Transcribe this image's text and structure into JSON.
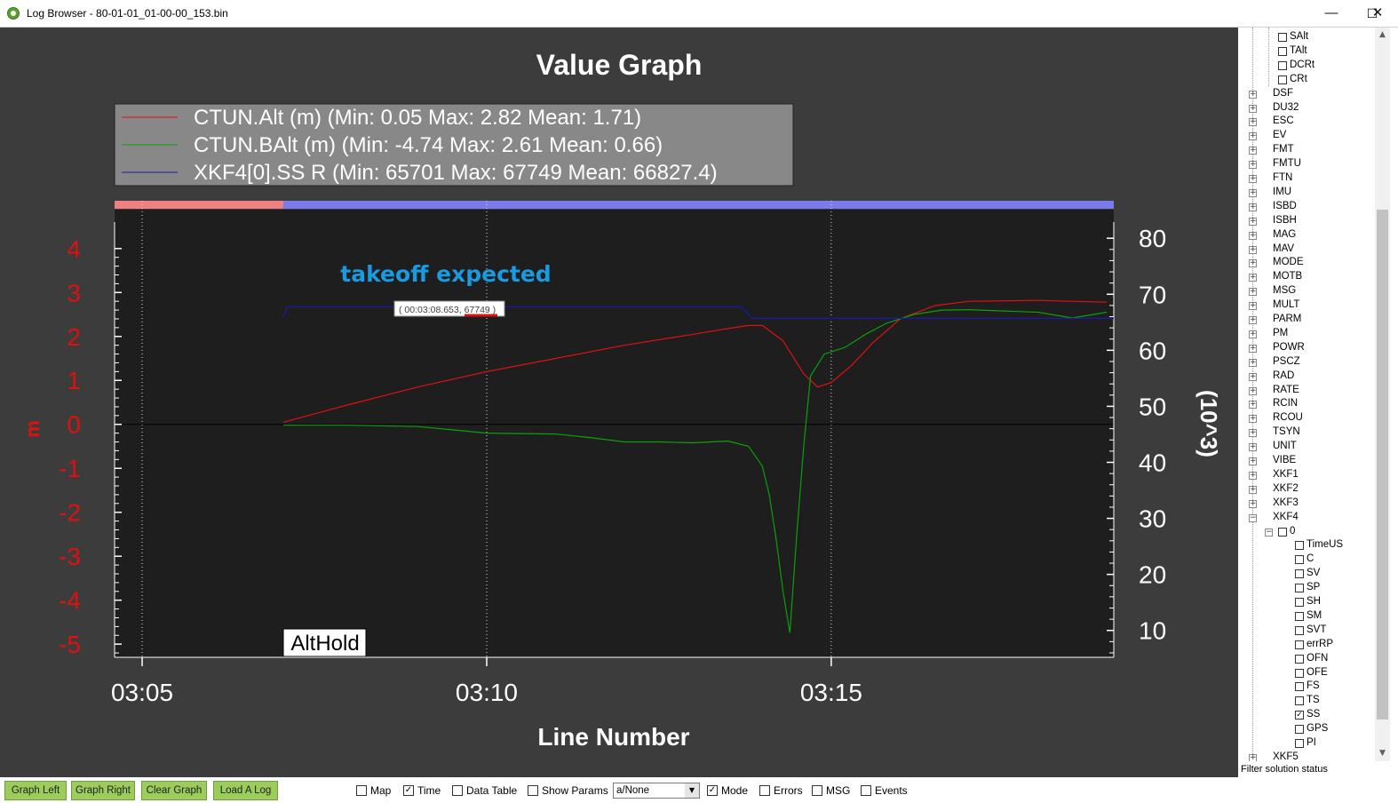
{
  "window": {
    "title": "Log Browser - 80-01-01_01-00-00_153.bin",
    "minimize": "—",
    "maximize": "☐",
    "close": "✕"
  },
  "graph": {
    "title": "Value Graph",
    "xlabel": "Line Number",
    "ylabel_left": "m",
    "ylabel_right": "(10^3)",
    "mode_label": "AltHold",
    "annotation": "takeoff expected",
    "tooltip": {
      "prefix": "( 00:03:08.653, ",
      "value": "67749",
      "suffix": " )"
    },
    "legend": [
      {
        "text": "CTUN.Alt (m) (Min: 0.05 Max: 2.82 Mean: 1.71)",
        "color": "#e01010"
      },
      {
        "text": "CTUN.BAlt (m) (Min: -4.74 Max: 2.61 Mean: 0.66)",
        "color": "#0aa00a"
      },
      {
        "text": "XKF4[0].SS R (Min: 65701 Max: 67749 Mean: 66827.4)",
        "color": "#1a1ab0"
      }
    ],
    "colors": {
      "background": "#3c3c3c",
      "plot": "#1e1e1e",
      "left_axis": "#e01010",
      "right_axis": "#ffffff",
      "annotation": "#1a9ae0",
      "mode_pink": "#f08080",
      "mode_blue": "#7b7bf0"
    }
  },
  "chart_data": {
    "type": "line",
    "title": "Value Graph",
    "xlabel": "Line Number",
    "ylabel": "m",
    "y2label": "(10^3)",
    "x_ticks": [
      "03:05",
      "03:10",
      "03:15"
    ],
    "x_tick_minutes": [
      185,
      190,
      195
    ],
    "xlim_minutes": [
      184.6,
      199.1
    ],
    "ylim": [
      -5.3,
      4.4
    ],
    "y_ticks": [
      4,
      3,
      2,
      1,
      0,
      -1,
      -2,
      -3,
      -4,
      -5
    ],
    "y2lim": [
      5.2,
      81.3
    ],
    "y2_ticks": [
      80,
      70,
      60,
      50,
      40,
      30,
      20,
      10
    ],
    "grid": "vertical dotted at x ticks",
    "series": [
      {
        "name": "CTUN.Alt (m)",
        "axis": "left",
        "color": "#e01010",
        "points": [
          [
            187.05,
            0.05
          ],
          [
            188,
            0.45
          ],
          [
            189,
            0.85
          ],
          [
            190,
            1.2
          ],
          [
            191,
            1.5
          ],
          [
            192,
            1.8
          ],
          [
            193,
            2.05
          ],
          [
            193.5,
            2.18
          ],
          [
            193.8,
            2.25
          ],
          [
            194.0,
            2.25
          ],
          [
            194.3,
            1.9
          ],
          [
            194.6,
            1.15
          ],
          [
            194.8,
            0.85
          ],
          [
            195.0,
            0.95
          ],
          [
            195.3,
            1.35
          ],
          [
            195.6,
            1.85
          ],
          [
            196,
            2.4
          ],
          [
            196.5,
            2.7
          ],
          [
            197,
            2.8
          ],
          [
            198,
            2.82
          ],
          [
            199,
            2.78
          ]
        ]
      },
      {
        "name": "CTUN.BAlt (m)",
        "axis": "left",
        "color": "#0aa00a",
        "points": [
          [
            187.05,
            -0.02
          ],
          [
            188,
            -0.02
          ],
          [
            189,
            -0.05
          ],
          [
            190,
            -0.2
          ],
          [
            191,
            -0.22
          ],
          [
            191.5,
            -0.3
          ],
          [
            192,
            -0.4
          ],
          [
            192.5,
            -0.4
          ],
          [
            193,
            -0.42
          ],
          [
            193.5,
            -0.38
          ],
          [
            193.8,
            -0.5
          ],
          [
            194.0,
            -0.95
          ],
          [
            194.1,
            -1.6
          ],
          [
            194.2,
            -2.6
          ],
          [
            194.3,
            -3.8
          ],
          [
            194.4,
            -4.74
          ],
          [
            194.5,
            -2.5
          ],
          [
            194.6,
            -0.5
          ],
          [
            194.7,
            1.1
          ],
          [
            194.9,
            1.6
          ],
          [
            195.2,
            1.75
          ],
          [
            195.5,
            2.05
          ],
          [
            195.8,
            2.3
          ],
          [
            196.2,
            2.5
          ],
          [
            196.6,
            2.6
          ],
          [
            197,
            2.61
          ],
          [
            197.5,
            2.58
          ],
          [
            198,
            2.55
          ],
          [
            198.5,
            2.42
          ],
          [
            199,
            2.55
          ]
        ]
      },
      {
        "name": "XKF4[0].SS R",
        "axis": "right",
        "color": "#1a1ab0",
        "points": [
          [
            187.05,
            66.0
          ],
          [
            187.1,
            67.749
          ],
          [
            193.7,
            67.749
          ],
          [
            193.85,
            65.701
          ],
          [
            199.1,
            65.701
          ]
        ]
      }
    ],
    "mode_bar": [
      {
        "mode": "pink",
        "from": 184.6,
        "to": 187.05
      },
      {
        "mode": "blue",
        "from": 187.05,
        "to": 199.1
      }
    ]
  },
  "tree": {
    "items": [
      {
        "label": "SAlt",
        "level": "leaf",
        "checked": false
      },
      {
        "label": "TAlt",
        "level": "leaf",
        "checked": false
      },
      {
        "label": "DCRt",
        "level": "leaf",
        "checked": false
      },
      {
        "label": "CRt",
        "level": "leaf",
        "checked": false
      },
      {
        "label": "DSF",
        "level": "root",
        "exp": "+"
      },
      {
        "label": "DU32",
        "level": "root",
        "exp": "+"
      },
      {
        "label": "ESC",
        "level": "root",
        "exp": "+"
      },
      {
        "label": "EV",
        "level": "root",
        "exp": "+"
      },
      {
        "label": "FMT",
        "level": "root",
        "exp": "+"
      },
      {
        "label": "FMTU",
        "level": "root",
        "exp": "+"
      },
      {
        "label": "FTN",
        "level": "root",
        "exp": "+"
      },
      {
        "label": "IMU",
        "level": "root",
        "exp": "+"
      },
      {
        "label": "ISBD",
        "level": "root",
        "exp": "+"
      },
      {
        "label": "ISBH",
        "level": "root",
        "exp": "+"
      },
      {
        "label": "MAG",
        "level": "root",
        "exp": "+"
      },
      {
        "label": "MAV",
        "level": "root",
        "exp": "+"
      },
      {
        "label": "MODE",
        "level": "root",
        "exp": "+"
      },
      {
        "label": "MOTB",
        "level": "root",
        "exp": "+"
      },
      {
        "label": "MSG",
        "level": "root",
        "exp": "+"
      },
      {
        "label": "MULT",
        "level": "root",
        "exp": "+"
      },
      {
        "label": "PARM",
        "level": "root",
        "exp": "+"
      },
      {
        "label": "PM",
        "level": "root",
        "exp": "+"
      },
      {
        "label": "POWR",
        "level": "root",
        "exp": "+"
      },
      {
        "label": "PSCZ",
        "level": "root",
        "exp": "+"
      },
      {
        "label": "RAD",
        "level": "root",
        "exp": "+"
      },
      {
        "label": "RATE",
        "level": "root",
        "exp": "+"
      },
      {
        "label": "RCIN",
        "level": "root",
        "exp": "+"
      },
      {
        "label": "RCOU",
        "level": "root",
        "exp": "+"
      },
      {
        "label": "TSYN",
        "level": "root",
        "exp": "+"
      },
      {
        "label": "UNIT",
        "level": "root",
        "exp": "+"
      },
      {
        "label": "VIBE",
        "level": "root",
        "exp": "+"
      },
      {
        "label": "XKF1",
        "level": "root",
        "exp": "+"
      },
      {
        "label": "XKF2",
        "level": "root",
        "exp": "+"
      },
      {
        "label": "XKF3",
        "level": "root",
        "exp": "+"
      },
      {
        "label": "XKF4",
        "level": "root",
        "exp": "-"
      },
      {
        "label": "0",
        "level": "mid",
        "exp": "-",
        "checked": false
      },
      {
        "label": "TimeUS",
        "level": "leaf2",
        "checked": false
      },
      {
        "label": "C",
        "level": "leaf2",
        "checked": false
      },
      {
        "label": "SV",
        "level": "leaf2",
        "checked": false
      },
      {
        "label": "SP",
        "level": "leaf2",
        "checked": false
      },
      {
        "label": "SH",
        "level": "leaf2",
        "checked": false
      },
      {
        "label": "SM",
        "level": "leaf2",
        "checked": false
      },
      {
        "label": "SVT",
        "level": "leaf2",
        "checked": false
      },
      {
        "label": "errRP",
        "level": "leaf2",
        "checked": false
      },
      {
        "label": "OFN",
        "level": "leaf2",
        "checked": false
      },
      {
        "label": "OFE",
        "level": "leaf2",
        "checked": false
      },
      {
        "label": "FS",
        "level": "leaf2",
        "checked": false
      },
      {
        "label": "TS",
        "level": "leaf2",
        "checked": false
      },
      {
        "label": "SS",
        "level": "leaf2",
        "checked": true
      },
      {
        "label": "GPS",
        "level": "leaf2",
        "checked": false
      },
      {
        "label": "PI",
        "level": "leaf2",
        "checked": false
      },
      {
        "label": "XKF5",
        "level": "root",
        "exp": "+"
      }
    ],
    "status": "Filter solution status"
  },
  "toolbar": {
    "buttons": [
      "Graph Left",
      "Graph Right",
      "Clear Graph",
      "Load A Log"
    ],
    "checks": [
      {
        "label": "Map",
        "checked": false
      },
      {
        "label": "Time",
        "checked": true
      },
      {
        "label": "Data Table",
        "checked": false
      },
      {
        "label": "Show Params",
        "checked": false
      }
    ],
    "combo": "a/None",
    "checks2": [
      {
        "label": "Mode",
        "checked": true
      },
      {
        "label": "Errors",
        "checked": false
      },
      {
        "label": "MSG",
        "checked": false
      },
      {
        "label": "Events",
        "checked": false
      }
    ]
  }
}
